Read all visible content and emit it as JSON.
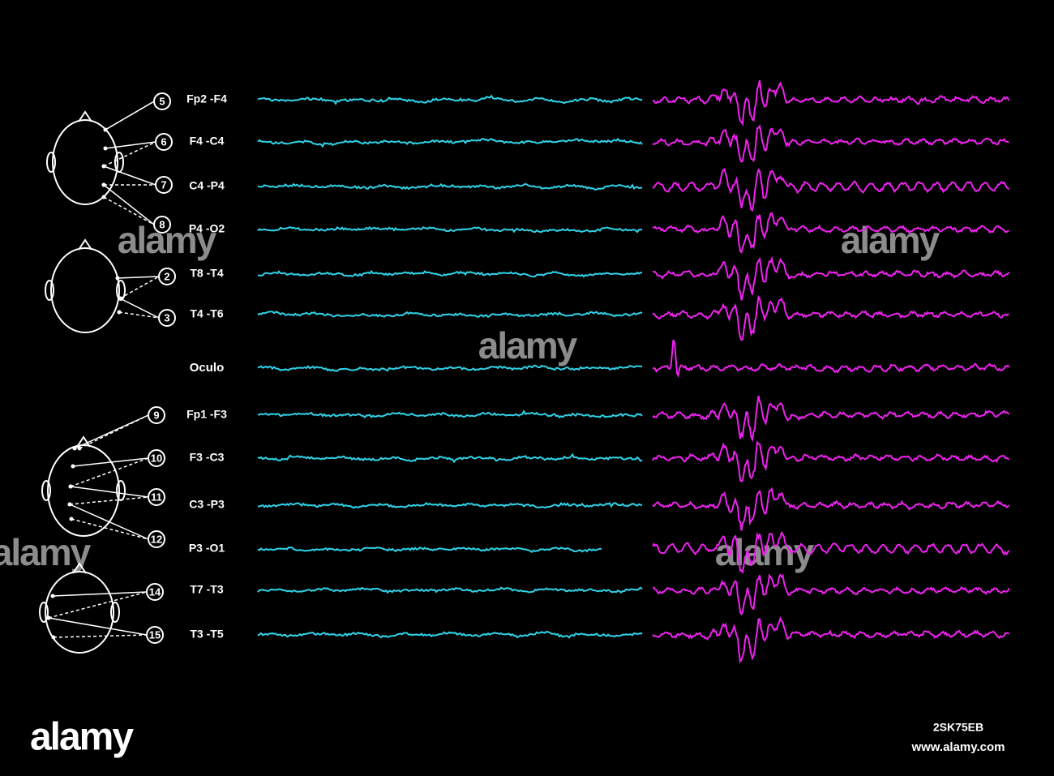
{
  "channels": [
    "Fp2 -F4",
    "F4 -C4",
    "C4 -P4",
    "P4 -O2",
    "T8 -T4",
    "T4 -T6",
    "Oculo",
    "Fp1 -F3",
    "F3 -C3",
    "C3 -P3",
    "P3 -O1",
    "T7 -T3",
    "T3 -T5"
  ],
  "heads": [
    [
      "5",
      "6",
      "7",
      "8"
    ],
    [
      "2",
      "3"
    ],
    [
      "9",
      "10",
      "11",
      "12"
    ],
    [
      "14",
      "15"
    ]
  ],
  "watermark": {
    "brand": "alamy",
    "id": "2SK75EB",
    "url": "www.alamy.com"
  }
}
